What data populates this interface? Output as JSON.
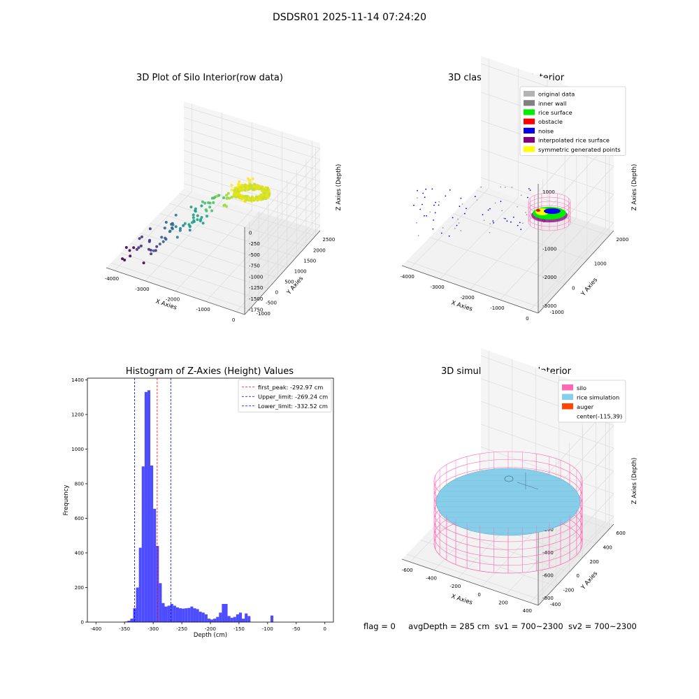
{
  "suptitle": "DSDSR01 2025-11-14 07:24:20",
  "footer": {
    "flag": "flag = 0",
    "avg_depth": "avgDepth = 285 cm",
    "sv1": "sv1 = 700~2300",
    "sv2": "sv2 = 700~2300"
  },
  "chart_data": [
    {
      "type": "scatter",
      "projection": "3d",
      "title": "3D Plot of Silo Interior(row data)",
      "xlabel": "X Axies",
      "ylabel": "Y Axies",
      "zlabel": "Z Axies (Depth)",
      "x_ticks": [
        -4000,
        -3000,
        -2000,
        -1000,
        0
      ],
      "y_ticks": [
        -1000,
        -500,
        0,
        500,
        1000,
        1500,
        2000,
        2500
      ],
      "z_ticks": [
        -1750,
        -1500,
        -1250,
        -1000,
        -750,
        -500,
        -250,
        0
      ],
      "colormap": "viridis"
    },
    {
      "type": "scatter",
      "projection": "3d",
      "title": "3D classify of Silo Interior",
      "xlabel": "X Axies",
      "ylabel": "Y Axies",
      "zlabel": "Z Axies (Depth)",
      "x_ticks": [
        -4000,
        -3000,
        -2000,
        -1000,
        0
      ],
      "y_ticks": [
        -1000,
        0,
        1000,
        2000
      ],
      "z_ticks": [
        -3000,
        -2000,
        -1000,
        0,
        1000
      ],
      "legend_position": "top-right",
      "legend": [
        {
          "label": "original data",
          "color": "#b3b3b3"
        },
        {
          "label": "inner wall",
          "color": "#808080"
        },
        {
          "label": "rice surface",
          "color": "#00ee00"
        },
        {
          "label": "obstacle",
          "color": "#ff0000"
        },
        {
          "label": "noise",
          "color": "#0000ee"
        },
        {
          "label": "interpolated rice surface",
          "color": "#800080"
        },
        {
          "label": "symmetric generated points",
          "color": "#ffff00"
        }
      ]
    },
    {
      "type": "bar",
      "title": "Histogram of Z-Axies (Height) Values",
      "xlabel": "Depth (cm)",
      "ylabel": "Frequency",
      "xlim": [
        -415,
        15
      ],
      "ylim": [
        0,
        1410
      ],
      "x_ticks": [
        -400,
        -350,
        -300,
        -250,
        -200,
        -150,
        -100,
        -50,
        0
      ],
      "y_ticks": [
        0,
        200,
        400,
        600,
        800,
        1000,
        1200,
        1400
      ],
      "bar_color": "#4d4dff",
      "bin_width": 5,
      "bin_starts": [
        -350,
        -345,
        -340,
        -335,
        -330,
        -325,
        -320,
        -315,
        -310,
        -305,
        -300,
        -295,
        -290,
        -285,
        -280,
        -275,
        -270,
        -265,
        -260,
        -255,
        -250,
        -245,
        -240,
        -235,
        -230,
        -225,
        -220,
        -215,
        -210,
        -205,
        -200,
        -195,
        -190,
        -185,
        -180,
        -175,
        -170,
        -165,
        -160,
        -155,
        -150,
        -145,
        -140,
        -135,
        -130,
        -125,
        -120,
        -115,
        -110,
        -105,
        -100,
        -95,
        -90,
        -85,
        -80,
        -75,
        -70,
        -65,
        -60,
        -55,
        -50,
        -45,
        -40,
        -35,
        -30,
        -25,
        -20,
        -15,
        -10,
        -5,
        0
      ],
      "values": [
        3,
        8,
        20,
        80,
        200,
        430,
        900,
        1330,
        1340,
        905,
        655,
        440,
        225,
        110,
        90,
        95,
        105,
        95,
        85,
        80,
        78,
        80,
        82,
        90,
        80,
        75,
        60,
        55,
        45,
        20,
        15,
        20,
        30,
        55,
        105,
        105,
        35,
        25,
        30,
        45,
        55,
        20,
        50,
        35,
        0,
        0,
        0,
        0,
        0,
        0,
        0,
        38,
        0,
        0,
        0,
        0,
        0,
        0,
        0,
        0,
        0,
        0,
        0,
        0,
        0,
        0,
        0,
        0,
        0,
        0,
        0
      ],
      "lines": [
        {
          "label": "first_peak: -292.97 cm",
          "x": -292.97,
          "color": "#ff0000"
        },
        {
          "label": "Upper_limit: -269.24 cm",
          "x": -269.24,
          "color": "#0000cc"
        },
        {
          "label": "Lower_limit: -332.52 cm",
          "x": -332.52,
          "color": "#0000cc"
        }
      ],
      "legend_position": "top-right"
    },
    {
      "type": "surface",
      "projection": "3d",
      "title": "3D simulation of Silo Interior",
      "xlabel": "X Axies",
      "ylabel": "Y Axies",
      "zlabel": "Z Axies (Depth)",
      "x_ticks": [
        -600,
        -400,
        -200,
        0,
        200,
        400
      ],
      "y_ticks": [
        -400,
        -200,
        0,
        200,
        400,
        600
      ],
      "z_ticks": [
        -800,
        -600,
        -400,
        -200,
        0,
        200
      ],
      "legend_position": "top-right",
      "legend": [
        {
          "label": "silo",
          "color": "#ff69b4"
        },
        {
          "label": "rice simulation",
          "color": "#87ceeb"
        },
        {
          "label": "auger",
          "color": "#ff4500"
        },
        {
          "label": "center(-115,39)",
          "color": "none"
        }
      ]
    }
  ]
}
